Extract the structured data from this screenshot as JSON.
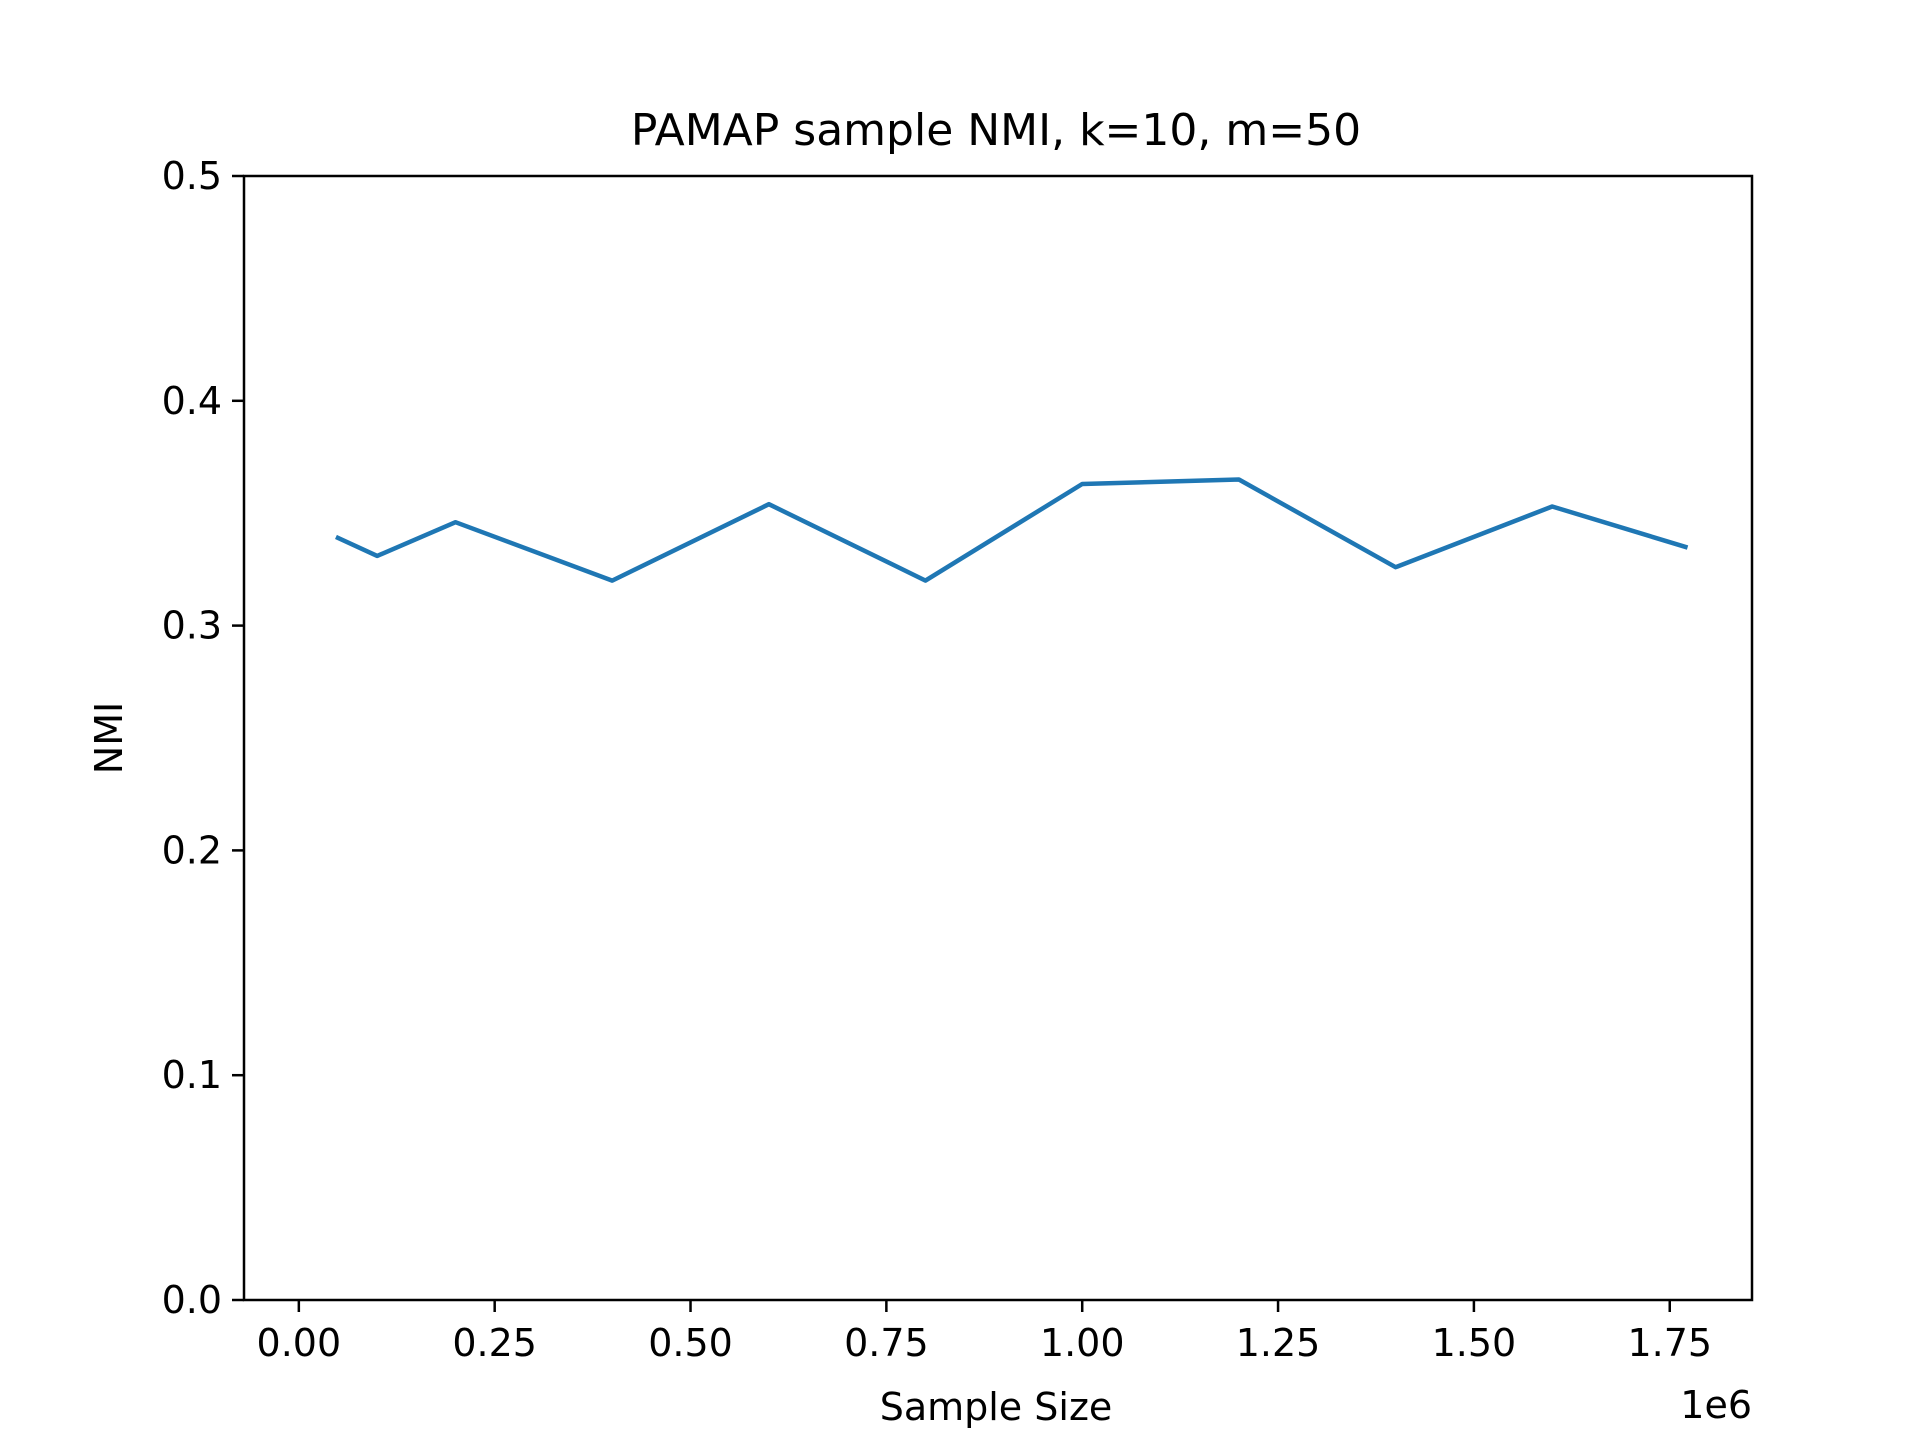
{
  "chart_data": {
    "type": "line",
    "title": "PAMAP sample NMI, k=10, m=50",
    "xlabel": "Sample Size",
    "ylabel": "NMI",
    "x_offset_label": "1e6",
    "xlim": [
      -70000,
      1855000
    ],
    "ylim": [
      0,
      0.5
    ],
    "x_ticks": [
      0,
      250000,
      500000,
      750000,
      1000000,
      1250000,
      1500000,
      1750000
    ],
    "x_tick_labels": [
      "0.00",
      "0.25",
      "0.50",
      "0.75",
      "1.00",
      "1.25",
      "1.50",
      "1.75"
    ],
    "y_ticks": [
      0.0,
      0.1,
      0.2,
      0.3,
      0.4,
      0.5
    ],
    "y_tick_labels": [
      "0.0",
      "0.1",
      "0.2",
      "0.3",
      "0.4",
      "0.5"
    ],
    "grid": false,
    "series": [
      {
        "color": "#1f77b4",
        "x": [
          50000,
          100000,
          200000,
          400000,
          600000,
          800000,
          1000000,
          1200000,
          1400000,
          1600000,
          1770000
        ],
        "y": [
          0.339,
          0.331,
          0.346,
          0.32,
          0.354,
          0.32,
          0.363,
          0.365,
          0.326,
          0.353,
          0.335
        ]
      }
    ]
  }
}
